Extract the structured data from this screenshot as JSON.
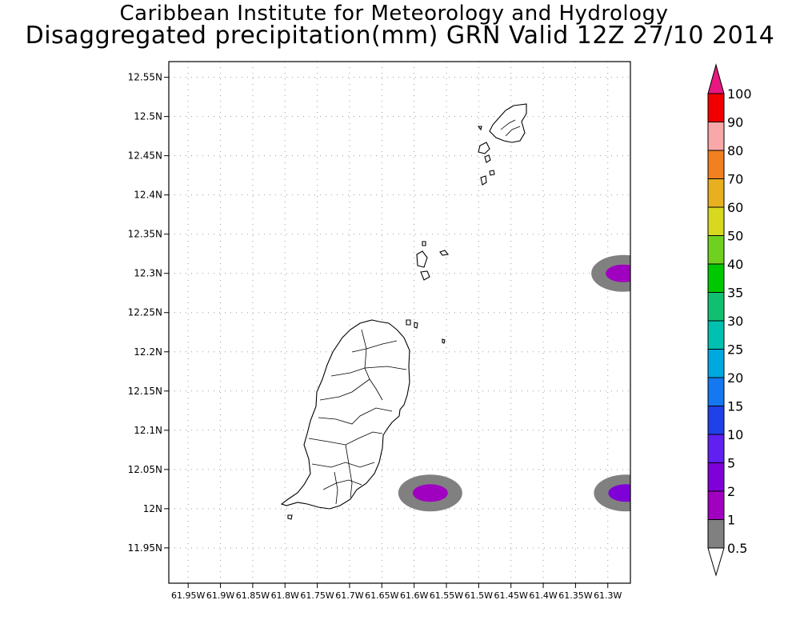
{
  "header": {
    "title_line1": "Caribbean Institute for Meteorology and Hydrology",
    "title_line2": "Disaggregated precipitation(mm) GRN Valid 12Z 27/10 2014"
  },
  "axes": {
    "lat_range": [
      11.905,
      12.57
    ],
    "lon_range": [
      -61.98,
      -61.265
    ],
    "lat_ticks": [
      "12.55N",
      "12.5N",
      "12.45N",
      "12.4N",
      "12.35N",
      "12.3N",
      "12.25N",
      "12.2N",
      "12.15N",
      "12.1N",
      "12.05N",
      "12N",
      "11.95N"
    ],
    "lat_tick_values": [
      12.55,
      12.5,
      12.45,
      12.4,
      12.35,
      12.3,
      12.25,
      12.2,
      12.15,
      12.1,
      12.05,
      12.0,
      11.95
    ],
    "lon_ticks": [
      "61.95W",
      "61.9W",
      "61.85W",
      "61.8W",
      "61.75W",
      "61.7W",
      "61.65W",
      "61.6W",
      "61.55W",
      "61.5W",
      "61.45W",
      "61.4W",
      "61.35W",
      "61.3W"
    ],
    "lon_tick_values": [
      -61.95,
      -61.9,
      -61.85,
      -61.8,
      -61.75,
      -61.7,
      -61.65,
      -61.6,
      -61.55,
      -61.5,
      -61.45,
      -61.4,
      -61.35,
      -61.3
    ],
    "grid": true
  },
  "colorbar": {
    "levels": [
      "0.5",
      "1",
      "2",
      "5",
      "10",
      "15",
      "20",
      "25",
      "30",
      "35",
      "40",
      "50",
      "60",
      "70",
      "80",
      "90",
      "100"
    ],
    "colors": [
      "#808080",
      "#a000c0",
      "#8000d8",
      "#6020f0",
      "#2040e8",
      "#1478f0",
      "#00a8e0",
      "#00c0b0",
      "#10c070",
      "#00c800",
      "#70d020",
      "#d8d820",
      "#e8b020",
      "#f08020",
      "#f8a8a8",
      "#f00000",
      "#f04040",
      "#e81880"
    ]
  },
  "precip_cells": [
    {
      "lon": -61.575,
      "lat": 12.02,
      "level": "1"
    },
    {
      "lon": -61.276,
      "lat": 12.3,
      "level": "1"
    },
    {
      "lon": -61.272,
      "lat": 12.02,
      "level": "2"
    }
  ]
}
